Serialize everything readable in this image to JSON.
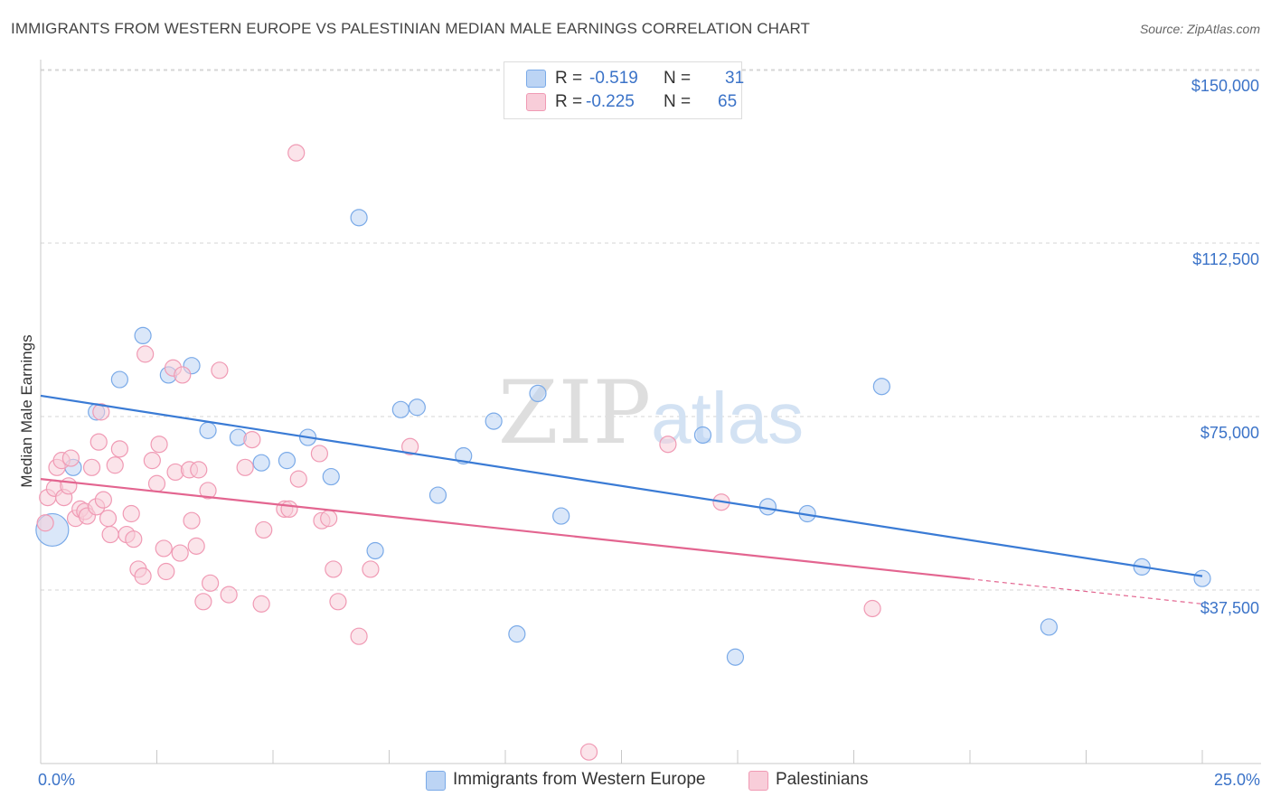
{
  "chart_data": {
    "type": "scatter",
    "title": "IMMIGRANTS FROM WESTERN EUROPE VS PALESTINIAN MEDIAN MALE EARNINGS CORRELATION CHART",
    "source": "Source: ZipAtlas.com",
    "xlabel": "",
    "ylabel": "Median Male Earnings",
    "xlim": [
      0,
      25
    ],
    "ylim": [
      0,
      157000
    ],
    "x_tick_labels": [
      "0.0%",
      "25.0%"
    ],
    "y_ticks": [
      37500,
      75000,
      112500,
      150000
    ],
    "y_tick_labels": [
      "$37,500",
      "$75,000",
      "$112,500",
      "$150,000"
    ],
    "watermark": "ZIPatlas",
    "legend": [
      {
        "r_label": "R =",
        "r_value": "-0.519",
        "n_label": "N =",
        "n_value": "31"
      },
      {
        "r_label": "R =",
        "r_value": "-0.225",
        "n_label": "N =",
        "n_value": "65"
      }
    ],
    "series": [
      {
        "name": "Immigrants from Western Europe",
        "color": "#7aaae8",
        "fill": "#bcd4f4",
        "line_color": "#3a7bd5",
        "trend": {
          "x": [
            0,
            25
          ],
          "y": [
            79500,
            40500
          ],
          "dashed_from": null
        },
        "points": [
          {
            "x": 0.25,
            "y": 50500,
            "big": true
          },
          {
            "x": 0.7,
            "y": 64000
          },
          {
            "x": 1.2,
            "y": 76000
          },
          {
            "x": 1.7,
            "y": 83000
          },
          {
            "x": 2.2,
            "y": 92500
          },
          {
            "x": 2.75,
            "y": 84000
          },
          {
            "x": 3.25,
            "y": 86000
          },
          {
            "x": 3.6,
            "y": 72000
          },
          {
            "x": 4.25,
            "y": 70500
          },
          {
            "x": 4.75,
            "y": 65000
          },
          {
            "x": 5.3,
            "y": 65500
          },
          {
            "x": 5.75,
            "y": 70500
          },
          {
            "x": 6.25,
            "y": 62000
          },
          {
            "x": 6.85,
            "y": 118000
          },
          {
            "x": 7.2,
            "y": 46000
          },
          {
            "x": 7.75,
            "y": 76500
          },
          {
            "x": 8.1,
            "y": 77000
          },
          {
            "x": 8.55,
            "y": 58000
          },
          {
            "x": 9.1,
            "y": 66500
          },
          {
            "x": 9.75,
            "y": 74000
          },
          {
            "x": 10.25,
            "y": 28000
          },
          {
            "x": 10.7,
            "y": 80000
          },
          {
            "x": 11.2,
            "y": 53500
          },
          {
            "x": 14.25,
            "y": 71000
          },
          {
            "x": 14.95,
            "y": 23000
          },
          {
            "x": 15.65,
            "y": 55500
          },
          {
            "x": 16.5,
            "y": 54000
          },
          {
            "x": 18.1,
            "y": 81500
          },
          {
            "x": 21.7,
            "y": 29500
          },
          {
            "x": 23.7,
            "y": 42500
          },
          {
            "x": 25.0,
            "y": 40000
          }
        ]
      },
      {
        "name": "Palestinians",
        "color": "#f09ab4",
        "fill": "#f8cdd9",
        "line_color": "#e36590",
        "trend": {
          "x": [
            0,
            25
          ],
          "y": [
            61500,
            34500
          ],
          "dashed_from": 20.0
        },
        "points": [
          {
            "x": 0.1,
            "y": 52000
          },
          {
            "x": 0.15,
            "y": 57500
          },
          {
            "x": 0.3,
            "y": 59500
          },
          {
            "x": 0.35,
            "y": 64000
          },
          {
            "x": 0.45,
            "y": 65500
          },
          {
            "x": 0.5,
            "y": 57500
          },
          {
            "x": 0.6,
            "y": 60000
          },
          {
            "x": 0.65,
            "y": 66000
          },
          {
            "x": 0.75,
            "y": 53000
          },
          {
            "x": 0.85,
            "y": 55000
          },
          {
            "x": 0.95,
            "y": 54500
          },
          {
            "x": 1.0,
            "y": 53500
          },
          {
            "x": 1.1,
            "y": 64000
          },
          {
            "x": 1.2,
            "y": 55500
          },
          {
            "x": 1.25,
            "y": 69500
          },
          {
            "x": 1.3,
            "y": 76000
          },
          {
            "x": 1.35,
            "y": 57000
          },
          {
            "x": 1.45,
            "y": 53000
          },
          {
            "x": 1.5,
            "y": 49500
          },
          {
            "x": 1.6,
            "y": 64500
          },
          {
            "x": 1.7,
            "y": 68000
          },
          {
            "x": 1.85,
            "y": 49500
          },
          {
            "x": 1.95,
            "y": 54000
          },
          {
            "x": 2.0,
            "y": 48500
          },
          {
            "x": 2.1,
            "y": 42000
          },
          {
            "x": 2.2,
            "y": 40500
          },
          {
            "x": 2.25,
            "y": 88500
          },
          {
            "x": 2.4,
            "y": 65500
          },
          {
            "x": 2.5,
            "y": 60500
          },
          {
            "x": 2.55,
            "y": 69000
          },
          {
            "x": 2.65,
            "y": 46500
          },
          {
            "x": 2.7,
            "y": 41500
          },
          {
            "x": 2.85,
            "y": 85500
          },
          {
            "x": 2.9,
            "y": 63000
          },
          {
            "x": 3.0,
            "y": 45500
          },
          {
            "x": 3.05,
            "y": 84000
          },
          {
            "x": 3.2,
            "y": 63500
          },
          {
            "x": 3.25,
            "y": 52500
          },
          {
            "x": 3.35,
            "y": 47000
          },
          {
            "x": 3.4,
            "y": 63500
          },
          {
            "x": 3.5,
            "y": 35000
          },
          {
            "x": 3.6,
            "y": 59000
          },
          {
            "x": 3.65,
            "y": 39000
          },
          {
            "x": 3.85,
            "y": 85000
          },
          {
            "x": 4.05,
            "y": 36500
          },
          {
            "x": 4.4,
            "y": 64000
          },
          {
            "x": 4.55,
            "y": 70000
          },
          {
            "x": 4.75,
            "y": 34500
          },
          {
            "x": 4.8,
            "y": 50500
          },
          {
            "x": 5.25,
            "y": 55000
          },
          {
            "x": 5.35,
            "y": 55000
          },
          {
            "x": 5.55,
            "y": 61500
          },
          {
            "x": 5.5,
            "y": 132000
          },
          {
            "x": 6.0,
            "y": 67000
          },
          {
            "x": 6.05,
            "y": 52500
          },
          {
            "x": 6.2,
            "y": 53000
          },
          {
            "x": 6.3,
            "y": 42000
          },
          {
            "x": 6.4,
            "y": 35000
          },
          {
            "x": 6.85,
            "y": 27500
          },
          {
            "x": 7.1,
            "y": 42000
          },
          {
            "x": 7.95,
            "y": 68500
          },
          {
            "x": 11.8,
            "y": 2500
          },
          {
            "x": 13.5,
            "y": 69000
          },
          {
            "x": 14.65,
            "y": 56500
          },
          {
            "x": 17.9,
            "y": 33500
          }
        ]
      }
    ]
  }
}
